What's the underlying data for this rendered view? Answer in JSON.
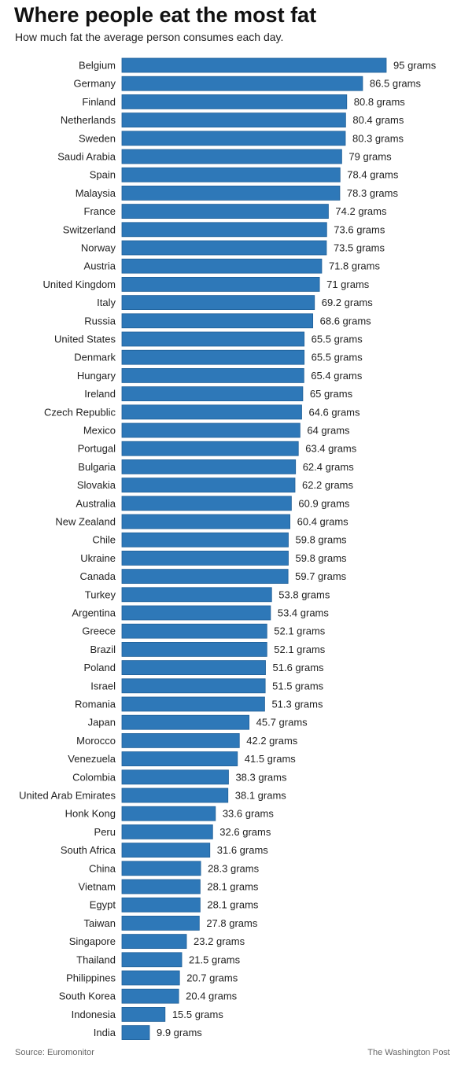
{
  "header": {
    "title": "Where people eat the most fat",
    "subtitle": "How much fat the average person consumes each day."
  },
  "footer": {
    "source": "Source: Euromonitor",
    "credit": "The Washington Post"
  },
  "colors": {
    "bar": "#2e78b8",
    "bar_stroke": "#1f5f98"
  },
  "chart_data": {
    "type": "bar",
    "orientation": "horizontal",
    "title": "Where people eat the most fat",
    "subtitle": "How much fat the average person consumes each day.",
    "unit_suffix": " grams",
    "xlim": [
      0,
      95
    ],
    "grid": false,
    "categories": [
      "Belgium",
      "Germany",
      "Finland",
      "Netherlands",
      "Sweden",
      "Saudi Arabia",
      "Spain",
      "Malaysia",
      "France",
      "Switzerland",
      "Norway",
      "Austria",
      "United Kingdom",
      "Italy",
      "Russia",
      "United States",
      "Denmark",
      "Hungary",
      "Ireland",
      "Czech Republic",
      "Mexico",
      "Portugal",
      "Bulgaria",
      "Slovakia",
      "Australia",
      "New Zealand",
      "Chile",
      "Ukraine",
      "Canada",
      "Turkey",
      "Argentina",
      "Greece",
      "Brazil",
      "Poland",
      "Israel",
      "Romania",
      "Japan",
      "Morocco",
      "Venezuela",
      "Colombia",
      "United Arab Emirates",
      "Honk Kong",
      "Peru",
      "South Africa",
      "China",
      "Vietnam",
      "Egypt",
      "Taiwan",
      "Singapore",
      "Thailand",
      "Philippines",
      "South Korea",
      "Indonesia",
      "India"
    ],
    "values": [
      95,
      86.5,
      80.8,
      80.4,
      80.3,
      79,
      78.4,
      78.3,
      74.2,
      73.6,
      73.5,
      71.8,
      71,
      69.2,
      68.6,
      65.5,
      65.5,
      65.4,
      65,
      64.6,
      64,
      63.4,
      62.4,
      62.2,
      60.9,
      60.4,
      59.8,
      59.8,
      59.7,
      53.8,
      53.4,
      52.1,
      52.1,
      51.6,
      51.5,
      51.3,
      45.7,
      42.2,
      41.5,
      38.3,
      38.1,
      33.6,
      32.6,
      31.6,
      28.3,
      28.1,
      28.1,
      27.8,
      23.2,
      21.5,
      20.7,
      20.4,
      15.5,
      9.9
    ]
  }
}
